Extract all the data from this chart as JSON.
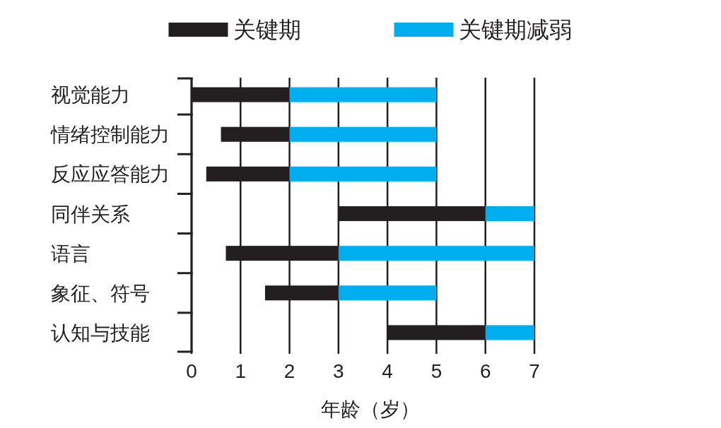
{
  "chart_data": {
    "type": "bar",
    "orientation": "horizontal",
    "categories": [
      "视觉能力",
      "情绪控制能力",
      "反应应答能力",
      "同伴关系",
      "语言",
      "象征、符号",
      "认知与技能"
    ],
    "series": [
      {
        "name": "关键期",
        "color": "#231f20",
        "base": [
          0,
          0.6,
          0.3,
          3,
          0.7,
          1.5,
          4
        ],
        "values": [
          2,
          1.4,
          1.7,
          3,
          2.3,
          1.5,
          2
        ]
      },
      {
        "name": "关键期减弱",
        "color": "#00aeef",
        "base": [
          2,
          2,
          2,
          6,
          3,
          3,
          6
        ],
        "values": [
          3,
          3,
          3,
          1,
          4,
          2,
          1
        ]
      }
    ],
    "xlim": [
      0,
      7
    ],
    "xticks": [
      0,
      1,
      2,
      3,
      4,
      5,
      6,
      7
    ],
    "xlabel": "年龄（岁）",
    "grid": "x",
    "legend": "top"
  }
}
